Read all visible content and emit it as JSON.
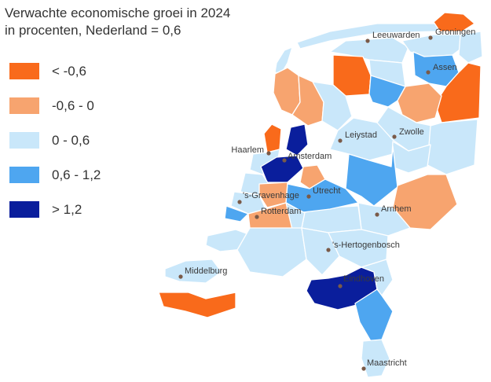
{
  "title": {
    "line1": "Verwachte economische groei in 2024",
    "line2": "in procenten, Nederland = 0,6"
  },
  "legend": [
    {
      "label": "< -0,6",
      "color": "#F96A1B"
    },
    {
      "label": "-0,6 - 0",
      "color": "#F7A46F"
    },
    {
      "label": "0 - 0,6",
      "color": "#C9E7FA"
    },
    {
      "label": "0,6 - 1,2",
      "color": "#4EA6F0"
    },
    {
      "label": "> 1,2",
      "color": "#0A1E9C"
    }
  ],
  "cities": [
    {
      "name": "Groningen"
    },
    {
      "name": "Leeuwarden"
    },
    {
      "name": "Assen"
    },
    {
      "name": "Leiystad"
    },
    {
      "name": "Zwolle"
    },
    {
      "name": "Haarlem"
    },
    {
      "name": "Amsterdam"
    },
    {
      "name": "'s-Gravenhage"
    },
    {
      "name": "Utrecht"
    },
    {
      "name": "Rotterdam"
    },
    {
      "name": "Arnhem"
    },
    {
      "name": "'s-Hertogenbosch"
    },
    {
      "name": "Middelburg"
    },
    {
      "name": "Eindhoven"
    },
    {
      "name": "Maastricht"
    }
  ],
  "colors": {
    "border": "#ffffff",
    "city_dot": "#7a5a48",
    "land_light": "#C9E7FA"
  }
}
